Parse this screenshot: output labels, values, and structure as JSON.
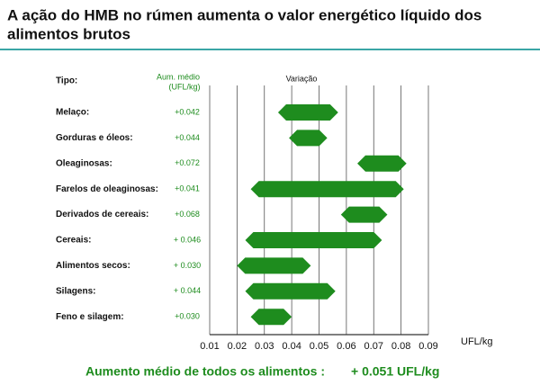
{
  "chart_data": {
    "type": "range",
    "title": [
      "A ação do HMB no rúmen aumenta o valor energético líquido dos",
      "alimentos brutos"
    ],
    "category_header": "Tipo:",
    "value_header": [
      "Aum. médio",
      "(UFL/kg)"
    ],
    "range_header": "Variação",
    "xlabel": "UFL/kg",
    "categories": [
      "Melaço:",
      "Gorduras e óleos:",
      "Oleaginosas:",
      "Farelos de oleaginosas:",
      "Derivados de cereais:",
      "Cereais:",
      "Alimentos secos:",
      "Silagens:",
      "Feno e silagem:"
    ],
    "values": [
      0.042,
      0.044,
      0.072,
      0.041,
      0.068,
      0.046,
      0.03,
      0.044,
      0.03
    ],
    "value_labels": [
      "+0.042",
      "+0.044",
      "+0.072",
      "+0.041",
      "+0.068",
      "+ 0.046",
      "+ 0.030",
      "+ 0.044",
      "+0.030"
    ],
    "low": [
      0.035,
      0.039,
      0.064,
      0.025,
      0.058,
      0.023,
      0.02,
      0.023,
      0.025
    ],
    "high": [
      0.057,
      0.053,
      0.082,
      0.081,
      0.075,
      0.073,
      0.047,
      0.056,
      0.04
    ],
    "color": "#1e8c1e",
    "xlim": [
      0.01,
      0.09
    ],
    "xticks": [
      0.01,
      0.02,
      0.03,
      0.04,
      0.05,
      0.06,
      0.07,
      0.08,
      0.09
    ],
    "grid": true,
    "footer": [
      "Aumento médio de todos os alimentos :",
      "+ 0.051 UFL/kg"
    ]
  }
}
